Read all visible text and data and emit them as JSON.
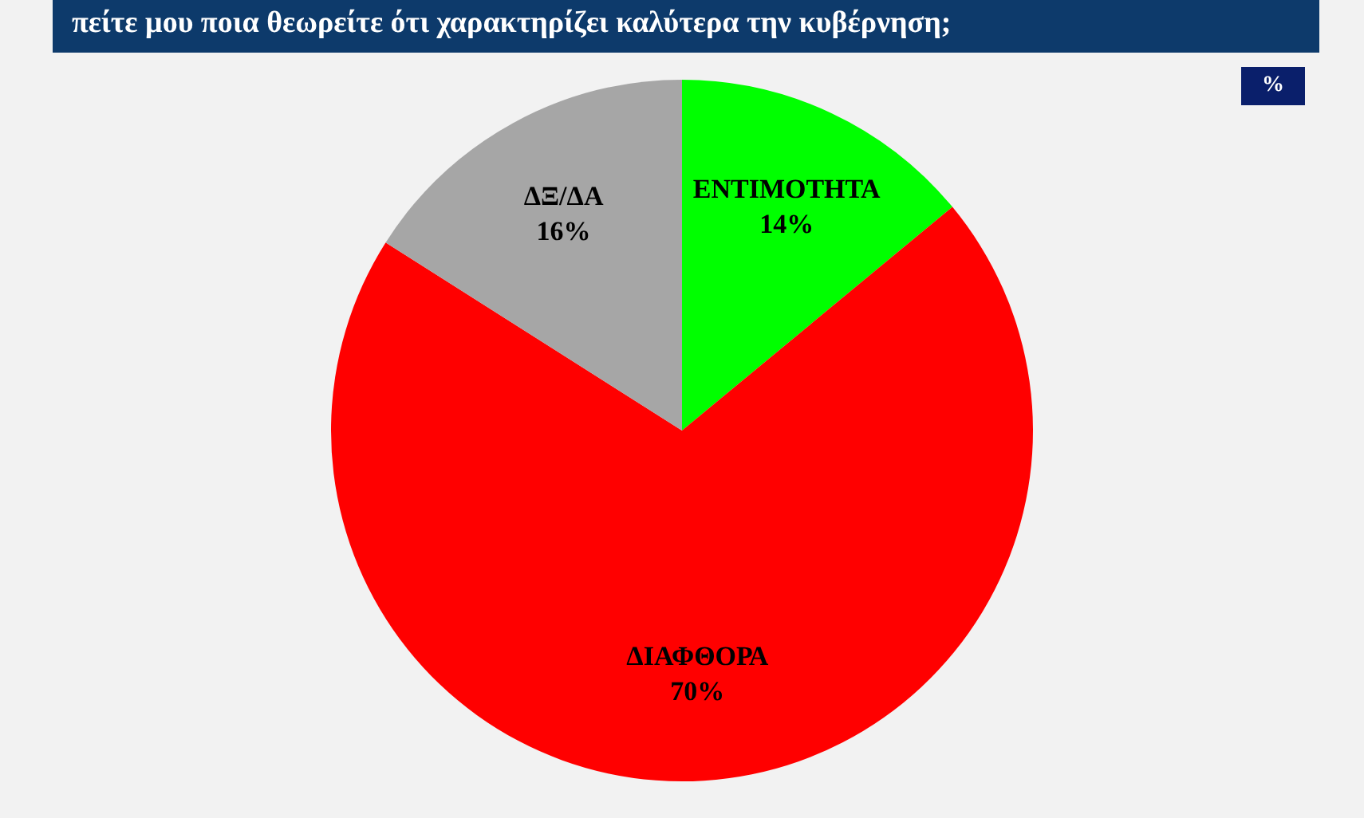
{
  "chart_data": {
    "type": "pie",
    "title": "πείτε μου ποια θεωρείτε ότι χαρακτηρίζει καλύτερα την κυβέρνηση;",
    "annotations": [
      "%"
    ],
    "categories": [
      "ΕΝΤΙΜΟΤΗΤΑ",
      "ΔΙΑΦΘΟΡΑ",
      "ΔΞ/ΔΑ"
    ],
    "values": [
      14,
      70,
      16
    ],
    "colors": [
      "#00ff00",
      "#ff0000",
      "#a6a6a6"
    ],
    "value_labels": [
      "14%",
      "70%",
      "16%"
    ],
    "legend": false
  }
}
